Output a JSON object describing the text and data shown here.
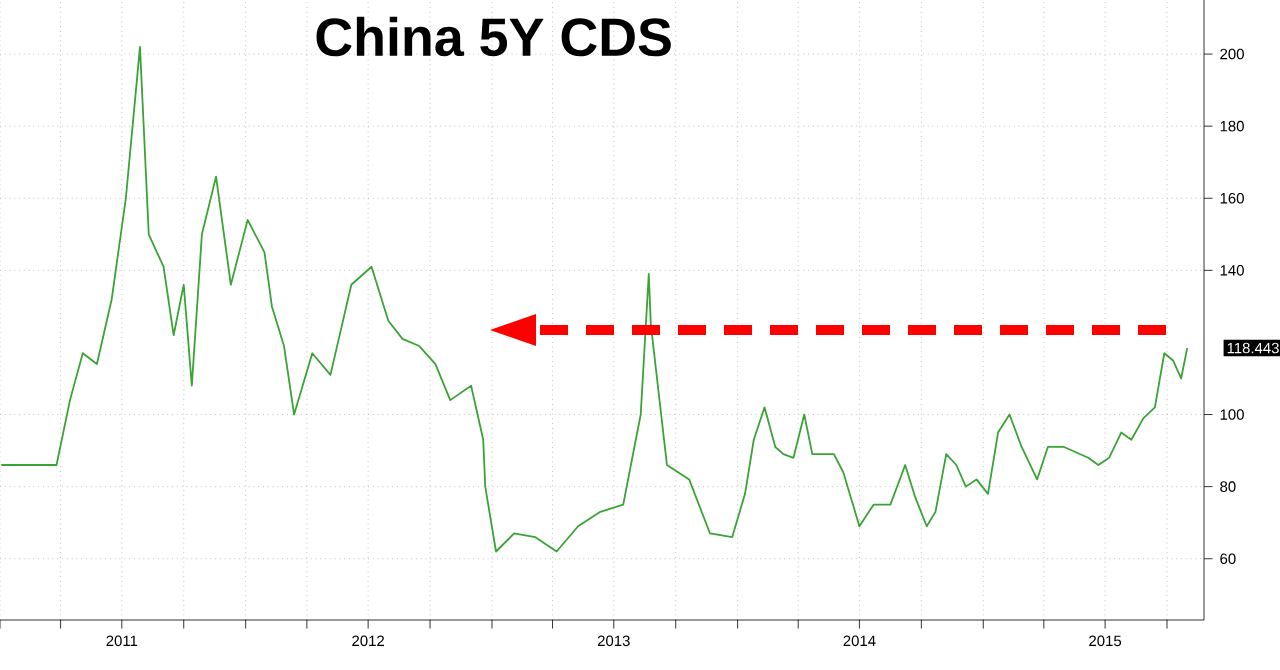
{
  "chart_data": {
    "type": "line",
    "title": "China 5Y CDS",
    "x": [
      "2011-01-03",
      "2011-03-26",
      "2011-04-15",
      "2011-05-04",
      "2011-05-25",
      "2011-06-16",
      "2011-07-07",
      "2011-07-28",
      "2011-08-10",
      "2011-09-01",
      "2011-09-16",
      "2011-10-01",
      "2011-10-13",
      "2011-10-28",
      "2011-11-18",
      "2011-12-10",
      "2012-01-04",
      "2012-01-29",
      "2012-02-09",
      "2012-02-27",
      "2012-03-13",
      "2012-04-09",
      "2012-05-06",
      "2012-06-06",
      "2012-07-06",
      "2012-07-31",
      "2012-08-21",
      "2012-09-15",
      "2012-10-09",
      "2012-10-31",
      "2012-12-01",
      "2012-12-19",
      "2012-12-22",
      "2013-01-07",
      "2013-02-03",
      "2013-03-06",
      "2013-04-07",
      "2013-05-09",
      "2013-06-11",
      "2013-07-15",
      "2013-08-10",
      "2013-08-22",
      "2013-08-25",
      "2013-09-18",
      "2013-10-21",
      "2013-11-21",
      "2013-12-24",
      "2014-01-12",
      "2014-01-25",
      "2014-02-10",
      "2014-02-26",
      "2014-03-10",
      "2014-03-25",
      "2014-04-10",
      "2014-04-22",
      "2014-05-24",
      "2014-06-07",
      "2014-07-01",
      "2014-07-22",
      "2014-08-16",
      "2014-09-07",
      "2014-09-22",
      "2014-10-09",
      "2014-10-22",
      "2014-11-07",
      "2014-11-22",
      "2014-12-06",
      "2014-12-22",
      "2015-01-08",
      "2015-01-23",
      "2015-02-09",
      "2015-02-27",
      "2015-03-22",
      "2015-04-07",
      "2015-05-01",
      "2015-06-06",
      "2015-06-21",
      "2015-07-07",
      "2015-07-25",
      "2015-08-09",
      "2015-08-27",
      "2015-09-13",
      "2015-09-27",
      "2015-10-10",
      "2015-10-22",
      "2015-10-31"
    ],
    "series": [
      {
        "color": "#3aa335",
        "values": [
          86,
          86,
          104,
          117,
          114,
          132,
          160,
          202,
          150,
          141,
          122,
          136,
          108,
          150,
          166,
          136,
          154,
          145,
          130,
          119,
          100,
          117,
          111,
          136,
          141,
          126,
          121,
          119,
          114,
          104,
          108,
          93,
          80,
          62,
          67,
          66,
          62,
          69,
          73,
          75,
          100,
          139,
          125,
          86,
          82,
          67,
          66,
          78,
          93,
          102,
          91,
          89,
          88,
          100,
          89,
          89,
          84,
          69,
          75,
          75,
          86,
          77,
          69,
          73,
          89,
          86,
          80,
          82,
          78,
          95,
          100,
          91,
          82,
          91,
          91,
          88,
          86,
          88,
          95,
          93,
          99,
          102,
          117,
          115,
          110,
          118.443
        ]
      }
    ],
    "xlim": [
      "2011-01-01",
      "2015-11-25"
    ],
    "xticks": [
      {
        "value": "2011-01-01",
        "label": null
      },
      {
        "value": "2011-04-01",
        "label": null
      },
      {
        "value": "2011-07-01",
        "label": "2011"
      },
      {
        "value": "2011-10-01",
        "label": null
      },
      {
        "value": "2012-01-01",
        "label": null
      },
      {
        "value": "2012-04-01",
        "label": null
      },
      {
        "value": "2012-07-01",
        "label": "2012"
      },
      {
        "value": "2012-10-01",
        "label": null
      },
      {
        "value": "2013-01-01",
        "label": null
      },
      {
        "value": "2013-04-01",
        "label": null
      },
      {
        "value": "2013-07-01",
        "label": "2013"
      },
      {
        "value": "2013-10-01",
        "label": null
      },
      {
        "value": "2014-01-01",
        "label": null
      },
      {
        "value": "2014-04-01",
        "label": null
      },
      {
        "value": "2014-07-01",
        "label": "2014"
      },
      {
        "value": "2014-10-01",
        "label": null
      },
      {
        "value": "2015-01-01",
        "label": null
      },
      {
        "value": "2015-04-01",
        "label": null
      },
      {
        "value": "2015-07-01",
        "label": "2015"
      },
      {
        "value": "2015-10-01",
        "label": null
      }
    ],
    "ylim": [
      43,
      215
    ],
    "yticks": [
      60,
      80,
      100,
      140,
      160,
      180,
      200
    ],
    "annotations": [
      {
        "text": "118.443",
        "x": "2015-10-31",
        "y": 118.443
      }
    ],
    "grid": true,
    "marker": "none",
    "line_style": "solid"
  }
}
